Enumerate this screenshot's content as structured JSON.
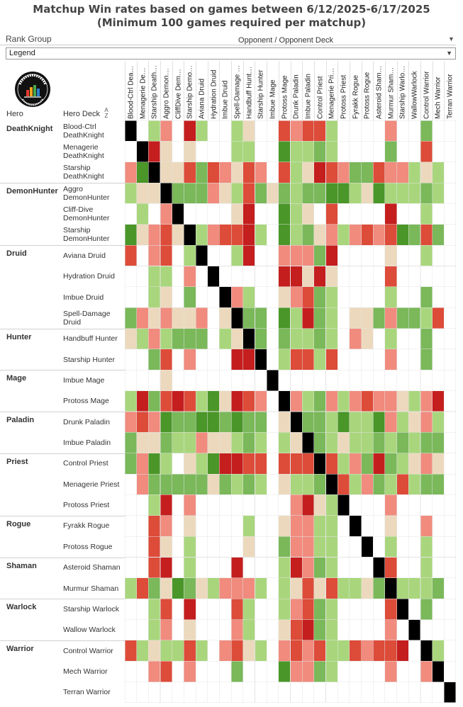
{
  "title_line1": "Matchup Win rates based on games between 6/12/2025-6/17/2025",
  "title_line2": "(Minimum 100 games required per matchup)",
  "filter": {
    "label": "Rank Group",
    "value": "Legend"
  },
  "opponent_header": "Opponent / Opponent Deck",
  "row_headers": {
    "hero": "Hero",
    "deck": "Hero Deck"
  },
  "logo_icon": "data-reaper-report-logo",
  "colors": {
    "black": "#000000",
    "darkRed": "#c41e1e",
    "red": "#dd4b39",
    "lightRed": "#f08b7e",
    "neutral": "#ecd9bd",
    "lightGreen": "#a9d67c",
    "green": "#7ab85a",
    "darkGreen": "#4a9628",
    "empty": "#ffffff"
  },
  "chart_data": {
    "type": "heatmap",
    "title": "Matchup Win rates based on games between 6/12/2025-6/17/2025",
    "subtitle": "(Minimum 100 games required per matchup)",
    "xlabel": "Opponent / Opponent Deck",
    "ylabel": "Hero / Hero Deck",
    "value_key": "0=no data, 1=dark red, 2=red, 3=light red, 4=neutral, 5=light green, 6=green, 7=dark green, 8=mirror",
    "col_labels": [
      "Blood-Ctrl Dea…",
      "Menagerie De…",
      "Starship Death…",
      "Aggro Demon…",
      "CliffDive Dem…",
      "Starship Demo…",
      "Aviana Druid",
      "Hydration Druid",
      "Imbue Druid",
      "Spell-Damage …",
      "Handbuff Hunt…",
      "Starship Hunter",
      "Imbue Mage",
      "Protoss Mage",
      "Drunk Paladin",
      "Imbue Paladin",
      "Control Priest",
      "Menagerie Pri…",
      "Protoss Priest",
      "Fyrakk Rogue",
      "Protoss Rogue",
      "Asteroid Sham…",
      "Murmur Sham…",
      "Starship Warlo…",
      "WallowWarlock",
      "Control Warrior",
      "Mech Warrior",
      "Terran Warrior"
    ],
    "heroes": [
      {
        "hero": "DeathKnight",
        "decks": [
          {
            "deck": "Blood-Ctrl DeathKnight",
            "values": [
              8,
              0,
              5,
              3,
              0,
              1,
              5,
              0,
              0,
              5,
              4,
              0,
              0,
              2,
              3,
              2,
              2,
              5,
              0,
              0,
              0,
              0,
              3,
              0,
              0,
              6,
              0,
              0
            ]
          },
          {
            "deck": "Menagerie DeathKnight",
            "values": [
              0,
              8,
              1,
              4,
              0,
              4,
              0,
              0,
              0,
              5,
              5,
              0,
              0,
              7,
              5,
              5,
              6,
              5,
              0,
              0,
              0,
              0,
              6,
              0,
              0,
              2,
              0,
              0
            ]
          },
          {
            "deck": "Starship DeathKnight",
            "values": [
              3,
              7,
              8,
              4,
              4,
              2,
              6,
              2,
              3,
              4,
              2,
              3,
              0,
              2,
              5,
              4,
              1,
              2,
              3,
              6,
              6,
              2,
              3,
              3,
              5,
              4,
              5,
              0
            ]
          }
        ]
      },
      {
        "hero": "DemonHunter",
        "decks": [
          {
            "deck": "Aggro DemonHunter",
            "values": [
              5,
              4,
              4,
              8,
              6,
              6,
              6,
              3,
              4,
              5,
              2,
              6,
              4,
              6,
              5,
              6,
              6,
              7,
              7,
              5,
              4,
              7,
              5,
              5,
              5,
              6,
              5,
              0
            ]
          },
          {
            "deck": "Cliff-Dive DemonHunter",
            "values": [
              0,
              5,
              0,
              3,
              8,
              0,
              0,
              0,
              0,
              4,
              1,
              0,
              0,
              7,
              5,
              4,
              0,
              2,
              0,
              0,
              0,
              0,
              1,
              0,
              0,
              5,
              0,
              0
            ]
          },
          {
            "deck": "Starship DemonHunter",
            "values": [
              7,
              4,
              3,
              2,
              4,
              8,
              5,
              3,
              2,
              2,
              1,
              5,
              0,
              7,
              5,
              6,
              4,
              3,
              5,
              3,
              2,
              3,
              2,
              7,
              6,
              2,
              6,
              0
            ]
          }
        ]
      },
      {
        "hero": "Druid",
        "decks": [
          {
            "deck": "Aviana Druid",
            "values": [
              2,
              0,
              3,
              2,
              0,
              5,
              8,
              0,
              0,
              5,
              1,
              0,
              0,
              3,
              3,
              3,
              6,
              1,
              0,
              0,
              0,
              0,
              4,
              0,
              0,
              5,
              0,
              0
            ]
          },
          {
            "deck": "Hydration Druid",
            "values": [
              0,
              0,
              5,
              5,
              0,
              3,
              0,
              8,
              0,
              0,
              0,
              0,
              0,
              1,
              1,
              4,
              1,
              4,
              0,
              0,
              0,
              0,
              2,
              0,
              0,
              0,
              0,
              0
            ]
          },
          {
            "deck": "Imbue Druid",
            "values": [
              0,
              0,
              5,
              4,
              0,
              6,
              0,
              0,
              8,
              3,
              5,
              0,
              0,
              4,
              3,
              2,
              6,
              5,
              0,
              0,
              0,
              0,
              5,
              0,
              0,
              6,
              0,
              0
            ]
          },
          {
            "deck": "Spell-Damage Druid",
            "values": [
              6,
              3,
              4,
              3,
              4,
              4,
              3,
              0,
              4,
              8,
              6,
              6,
              0,
              7,
              5,
              1,
              6,
              5,
              0,
              4,
              4,
              6,
              3,
              6,
              6,
              5,
              2,
              0
            ]
          }
        ]
      },
      {
        "hero": "Hunter",
        "decks": [
          {
            "deck": "Handbuff Hunter",
            "values": [
              4,
              5,
              3,
              5,
              6,
              6,
              6,
              0,
              5,
              4,
              8,
              6,
              0,
              6,
              5,
              5,
              6,
              5,
              0,
              3,
              4,
              0,
              5,
              0,
              0,
              6,
              0,
              0
            ]
          },
          {
            "deck": "Starship Hunter",
            "values": [
              0,
              0,
              6,
              2,
              0,
              3,
              0,
              0,
              0,
              1,
              1,
              8,
              0,
              5,
              2,
              2,
              5,
              2,
              0,
              0,
              0,
              0,
              3,
              0,
              0,
              6,
              0,
              0
            ]
          }
        ]
      },
      {
        "hero": "Mage",
        "decks": [
          {
            "deck": "Imbue Mage",
            "values": [
              0,
              0,
              0,
              4,
              0,
              0,
              0,
              0,
              0,
              0,
              0,
              0,
              8,
              0,
              0,
              0,
              0,
              0,
              0,
              0,
              0,
              0,
              0,
              0,
              0,
              0,
              0,
              0
            ]
          },
          {
            "deck": "Protoss Mage",
            "values": [
              5,
              1,
              6,
              2,
              1,
              2,
              5,
              7,
              4,
              1,
              2,
              3,
              0,
              8,
              3,
              5,
              6,
              3,
              5,
              3,
              2,
              3,
              3,
              4,
              5,
              3,
              1,
              0
            ]
          }
        ]
      },
      {
        "hero": "Paladin",
        "decks": [
          {
            "deck": "Drunk Paladin",
            "values": [
              3,
              2,
              3,
              7,
              6,
              6,
              7,
              7,
              6,
              7,
              6,
              6,
              0,
              4,
              8,
              6,
              6,
              5,
              7,
              5,
              5,
              7,
              3,
              5,
              4,
              3,
              5,
              0
            ]
          },
          {
            "deck": "Imbue Paladin",
            "values": [
              6,
              4,
              4,
              6,
              5,
              5,
              3,
              4,
              4,
              5,
              6,
              5,
              0,
              5,
              4,
              8,
              6,
              5,
              4,
              5,
              5,
              6,
              5,
              6,
              5,
              6,
              6,
              0
            ]
          }
        ]
      },
      {
        "hero": "Priest",
        "decks": [
          {
            "deck": "Control Priest",
            "values": [
              6,
              3,
              7,
              5,
              0,
              4,
              5,
              7,
              1,
              1,
              2,
              2,
              0,
              2,
              2,
              2,
              8,
              2,
              5,
              3,
              6,
              1,
              6,
              5,
              4,
              3,
              4,
              0
            ]
          },
          {
            "deck": "Menagerie Priest",
            "values": [
              0,
              3,
              6,
              6,
              6,
              6,
              6,
              4,
              6,
              5,
              6,
              5,
              0,
              4,
              5,
              5,
              6,
              8,
              2,
              5,
              3,
              6,
              5,
              2,
              5,
              6,
              6,
              0
            ]
          },
          {
            "deck": "Protoss Priest",
            "values": [
              0,
              0,
              5,
              1,
              0,
              3,
              0,
              0,
              0,
              0,
              0,
              0,
              0,
              0,
              3,
              1,
              4,
              5,
              8,
              0,
              0,
              0,
              3,
              0,
              0,
              0,
              0,
              0
            ]
          }
        ]
      },
      {
        "hero": "Rogue",
        "decks": [
          {
            "deck": "Fyrakk Rogue",
            "values": [
              0,
              0,
              2,
              3,
              0,
              4,
              0,
              0,
              0,
              0,
              5,
              0,
              0,
              4,
              3,
              3,
              5,
              5,
              0,
              8,
              0,
              0,
              4,
              0,
              0,
              3,
              0,
              0
            ]
          },
          {
            "deck": "Protoss Rogue",
            "values": [
              0,
              0,
              2,
              4,
              0,
              5,
              0,
              0,
              0,
              0,
              4,
              0,
              0,
              6,
              3,
              3,
              5,
              5,
              0,
              0,
              8,
              0,
              5,
              0,
              0,
              5,
              0,
              0
            ]
          }
        ]
      },
      {
        "hero": "Shaman",
        "decks": [
          {
            "deck": "Asteroid Shaman",
            "values": [
              0,
              0,
              2,
              1,
              0,
              5,
              0,
              0,
              0,
              1,
              0,
              0,
              0,
              5,
              1,
              3,
              6,
              5,
              0,
              0,
              0,
              8,
              2,
              0,
              0,
              5,
              0,
              0
            ]
          },
          {
            "deck": "Murmur Shaman",
            "values": [
              5,
              2,
              6,
              4,
              7,
              6,
              4,
              5,
              3,
              3,
              3,
              5,
              0,
              5,
              4,
              2,
              4,
              2,
              5,
              5,
              4,
              6,
              8,
              5,
              5,
              5,
              6,
              0
            ]
          }
        ]
      },
      {
        "hero": "Warlock",
        "decks": [
          {
            "deck": "Starship Warlock",
            "values": [
              0,
              0,
              5,
              2,
              0,
              1,
              0,
              0,
              0,
              2,
              5,
              0,
              0,
              5,
              3,
              2,
              6,
              5,
              0,
              0,
              0,
              0,
              2,
              8,
              0,
              6,
              0,
              0
            ]
          },
          {
            "deck": "Wallow Warlock",
            "values": [
              0,
              0,
              5,
              3,
              0,
              4,
              0,
              0,
              0,
              3,
              5,
              0,
              0,
              4,
              2,
              1,
              6,
              5,
              0,
              0,
              0,
              0,
              3,
              0,
              8,
              0,
              0,
              0
            ]
          }
        ]
      },
      {
        "hero": "Warrior",
        "decks": [
          {
            "deck": "Control Warrior",
            "values": [
              2,
              5,
              4,
              5,
              5,
              2,
              5,
              0,
              3,
              2,
              4,
              5,
              0,
              3,
              2,
              3,
              2,
              5,
              5,
              2,
              3,
              2,
              2,
              1,
              0,
              8,
              5,
              0
            ]
          },
          {
            "deck": "Mech Warrior",
            "values": [
              0,
              0,
              3,
              2,
              0,
              3,
              0,
              0,
              0,
              6,
              0,
              0,
              0,
              7,
              3,
              3,
              6,
              5,
              0,
              0,
              0,
              0,
              3,
              0,
              0,
              3,
              8,
              0
            ]
          },
          {
            "deck": "Terran Warrior",
            "values": [
              0,
              0,
              0,
              0,
              0,
              0,
              0,
              0,
              0,
              0,
              0,
              0,
              0,
              0,
              0,
              0,
              0,
              0,
              0,
              0,
              0,
              0,
              0,
              0,
              0,
              0,
              0,
              8
            ]
          }
        ]
      }
    ]
  }
}
